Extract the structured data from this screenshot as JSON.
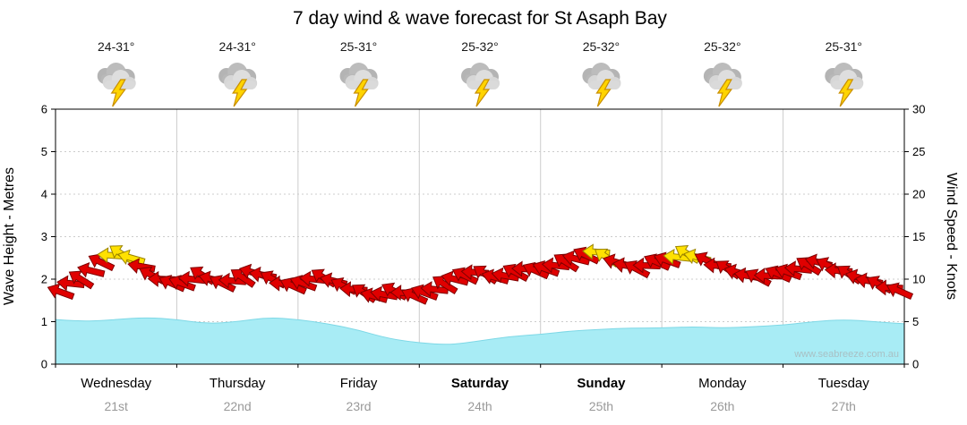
{
  "title": "7 day wind & wave forecast for St Asaph Bay",
  "watermark": "www.seabreeze.com.au",
  "days": [
    {
      "name": "Wednesday",
      "date": "21st",
      "temp": "24-31°",
      "icon": "storm-cloud-lightning",
      "weekend": false
    },
    {
      "name": "Thursday",
      "date": "22nd",
      "temp": "24-31°",
      "icon": "storm-cloud-lightning",
      "weekend": false
    },
    {
      "name": "Friday",
      "date": "23rd",
      "temp": "25-31°",
      "icon": "storm-cloud-lightning",
      "weekend": false
    },
    {
      "name": "Saturday",
      "date": "24th",
      "temp": "25-32°",
      "icon": "storm-cloud-lightning",
      "weekend": true
    },
    {
      "name": "Sunday",
      "date": "25th",
      "temp": "25-32°",
      "icon": "storm-cloud-lightning",
      "weekend": true
    },
    {
      "name": "Monday",
      "date": "26th",
      "temp": "25-32°",
      "icon": "storm-cloud-lightning",
      "weekend": false
    },
    {
      "name": "Tuesday",
      "date": "27th",
      "temp": "25-31°",
      "icon": "storm-cloud-lightning",
      "weekend": false
    }
  ],
  "colors": {
    "wave_fill": "#a8ecf5",
    "wave_stroke": "#7ed8e6",
    "arrow_red": "#e00000",
    "arrow_red_outline": "#7e0000",
    "arrow_yellow": "#ffe100",
    "arrow_yellow_outline": "#998200",
    "grid": "#cccccc",
    "date_text": "#999999"
  },
  "chart_data": {
    "type": "area",
    "title": "7 day wind & wave forecast for St Asaph Bay",
    "categories": [
      "Wednesday 21st",
      "Thursday 22nd",
      "Friday 23rd",
      "Saturday 24th",
      "Sunday 25th",
      "Monday 26th",
      "Tuesday 27th"
    ],
    "temps_c": [
      "24-31",
      "24-31",
      "25-31",
      "25-32",
      "25-32",
      "25-32",
      "25-31"
    ],
    "weather_icon": "storm-cloud-lightning",
    "legend_position": "none",
    "grid": "day-boundaries-vertical, dotted-horizontal-per-metre",
    "left_axis": {
      "label": "Wave Height - Metres",
      "range": [
        0,
        6
      ],
      "ticks": [
        0,
        1,
        2,
        3,
        4,
        5,
        6
      ]
    },
    "right_axis": {
      "label": "Wind Speed - Knots",
      "range": [
        0,
        30
      ],
      "ticks": [
        0,
        5,
        10,
        15,
        20,
        25,
        30
      ]
    },
    "wave_height_m": {
      "samples_per_day": 4,
      "values": [
        1.05,
        1.0,
        1.05,
        1.1,
        1.05,
        0.95,
        1.0,
        1.1,
        1.05,
        0.95,
        0.8,
        0.6,
        0.5,
        0.45,
        0.55,
        0.65,
        0.7,
        0.78,
        0.82,
        0.85,
        0.85,
        0.88,
        0.85,
        0.88,
        0.92,
        1.0,
        1.05,
        1.0,
        0.95
      ]
    },
    "wind": {
      "samples_per_day": 12,
      "speed_knots": [
        8.5,
        9.5,
        10,
        11,
        12,
        12.8,
        13,
        12.5,
        11.5,
        10.5,
        10,
        9.5,
        9.5,
        10,
        10.5,
        10,
        9.5,
        9.8,
        10.2,
        10.8,
        10.5,
        10,
        9.5,
        9.2,
        9.5,
        10,
        10.2,
        9.8,
        9.2,
        8.8,
        8.4,
        8,
        8.2,
        8.6,
        8.4,
        8,
        8.4,
        8.8,
        9.4,
        10,
        10.4,
        10.8,
        10.6,
        10.2,
        10.4,
        10.8,
        11.2,
        11,
        11.2,
        11.6,
        12,
        12.4,
        12.8,
        13.2,
        12.6,
        12,
        11.6,
        11.2,
        11.6,
        12,
        12.2,
        12.6,
        13,
        12.6,
        12.2,
        11.6,
        11.2,
        10.8,
        10.4,
        10.2,
        10.4,
        10.6,
        10.8,
        11.2,
        11.6,
        12,
        11.6,
        11,
        10.6,
        10.2,
        9.8,
        9.4,
        9,
        8.6
      ],
      "direction_deg": [
        200,
        186,
        212,
        194,
        206,
        184,
        214,
        196,
        190,
        208,
        182,
        204,
        200,
        186,
        212,
        194,
        206,
        184,
        214,
        196,
        190,
        208,
        182,
        204,
        200,
        186,
        212,
        194,
        206,
        184,
        214,
        196,
        190,
        208,
        182,
        204,
        200,
        186,
        212,
        194,
        206,
        184,
        214,
        196,
        190,
        208,
        182,
        204,
        200,
        186,
        212,
        194,
        206,
        184,
        214,
        196,
        190,
        208,
        182,
        204,
        200,
        186,
        212,
        194,
        206,
        184,
        214,
        196,
        190,
        208,
        182,
        204,
        200,
        186,
        212,
        194,
        206,
        184,
        214,
        196,
        190,
        208,
        182,
        204
      ],
      "yellow_indices": [
        5,
        6,
        7,
        53,
        54,
        61,
        62,
        63
      ]
    }
  }
}
